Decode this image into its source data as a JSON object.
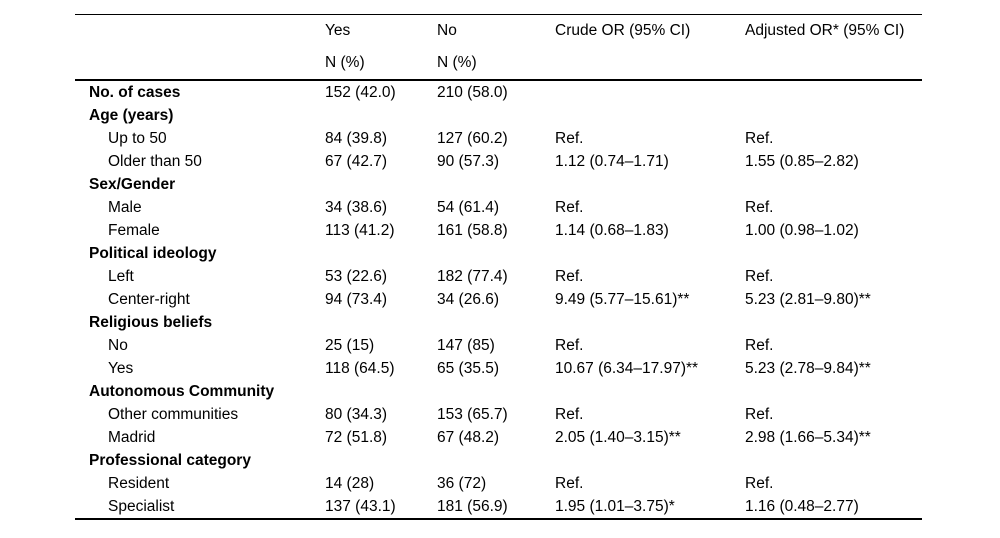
{
  "page": {
    "background_color": "#ffffff",
    "text_color": "#000000",
    "rule_color": "#000000"
  },
  "table": {
    "columns": [
      {
        "id": "label",
        "line1": "",
        "line2": ""
      },
      {
        "id": "yes",
        "line1": "Yes",
        "line2": "N (%)"
      },
      {
        "id": "no",
        "line1": "No",
        "line2": "N (%)"
      },
      {
        "id": "crude_or",
        "line1": "Crude OR (95% CI)",
        "line2": ""
      },
      {
        "id": "adjusted_or",
        "line1": "Adjusted OR* (95% CI)",
        "line2": ""
      }
    ],
    "rows": [
      {
        "label": "No. of cases",
        "bold": true,
        "indent": false,
        "yes": "152 (42.0)",
        "no": "210 (58.0)",
        "crude": "",
        "adjusted": ""
      },
      {
        "label": "Age (years)",
        "bold": true,
        "indent": false,
        "yes": "",
        "no": "",
        "crude": "",
        "adjusted": ""
      },
      {
        "label": "Up to 50",
        "bold": false,
        "indent": true,
        "yes": "84 (39.8)",
        "no": "127 (60.2)",
        "crude": "Ref.",
        "adjusted": "Ref."
      },
      {
        "label": "Older than 50",
        "bold": false,
        "indent": true,
        "yes": "67 (42.7)",
        "no": "90 (57.3)",
        "crude": "1.12 (0.74–1.71)",
        "adjusted": "1.55 (0.85–2.82)"
      },
      {
        "label": "Sex/Gender",
        "bold": true,
        "indent": false,
        "yes": "",
        "no": "",
        "crude": "",
        "adjusted": ""
      },
      {
        "label": "Male",
        "bold": false,
        "indent": true,
        "yes": "34 (38.6)",
        "no": "54 (61.4)",
        "crude": "Ref.",
        "adjusted": "Ref."
      },
      {
        "label": "Female",
        "bold": false,
        "indent": true,
        "yes": "113 (41.2)",
        "no": "161 (58.8)",
        "crude": "1.14 (0.68–1.83)",
        "adjusted": "1.00 (0.98–1.02)"
      },
      {
        "label": "Political ideology",
        "bold": true,
        "indent": false,
        "yes": "",
        "no": "",
        "crude": "",
        "adjusted": ""
      },
      {
        "label": "Left",
        "bold": false,
        "indent": true,
        "yes": "53 (22.6)",
        "no": "182 (77.4)",
        "crude": "Ref.",
        "adjusted": "Ref."
      },
      {
        "label": "Center-right",
        "bold": false,
        "indent": true,
        "yes": "94 (73.4)",
        "no": "34 (26.6)",
        "crude": "9.49 (5.77–15.61)**",
        "adjusted": "5.23 (2.81–9.80)**"
      },
      {
        "label": "Religious beliefs",
        "bold": true,
        "indent": false,
        "yes": "",
        "no": "",
        "crude": "",
        "adjusted": ""
      },
      {
        "label": "No",
        "bold": false,
        "indent": true,
        "yes": "25 (15)",
        "no": "147 (85)",
        "crude": "Ref.",
        "adjusted": "Ref."
      },
      {
        "label": "Yes",
        "bold": false,
        "indent": true,
        "yes": "118 (64.5)",
        "no": "65 (35.5)",
        "crude": "10.67 (6.34–17.97)**",
        "adjusted": "5.23 (2.78–9.84)**"
      },
      {
        "label": "Autonomous Community",
        "bold": true,
        "indent": false,
        "yes": "",
        "no": "",
        "crude": "",
        "adjusted": ""
      },
      {
        "label": "Other communities",
        "bold": false,
        "indent": true,
        "yes": "80 (34.3)",
        "no": "153 (65.7)",
        "crude": "Ref.",
        "adjusted": "Ref."
      },
      {
        "label": "Madrid",
        "bold": false,
        "indent": true,
        "yes": "72 (51.8)",
        "no": "67 (48.2)",
        "crude": "2.05 (1.40–3.15)**",
        "adjusted": "2.98 (1.66–5.34)**"
      },
      {
        "label": "Professional category",
        "bold": true,
        "indent": false,
        "yes": "",
        "no": "",
        "crude": "",
        "adjusted": ""
      },
      {
        "label": "Resident",
        "bold": false,
        "indent": true,
        "yes": "14 (28)",
        "no": "36 (72)",
        "crude": "Ref.",
        "adjusted": "Ref."
      },
      {
        "label": "Specialist",
        "bold": false,
        "indent": true,
        "yes": "137 (43.1)",
        "no": "181 (56.9)",
        "crude": "1.95 (1.01–3.75)*",
        "adjusted": "1.16 (0.48–2.77)"
      }
    ]
  }
}
